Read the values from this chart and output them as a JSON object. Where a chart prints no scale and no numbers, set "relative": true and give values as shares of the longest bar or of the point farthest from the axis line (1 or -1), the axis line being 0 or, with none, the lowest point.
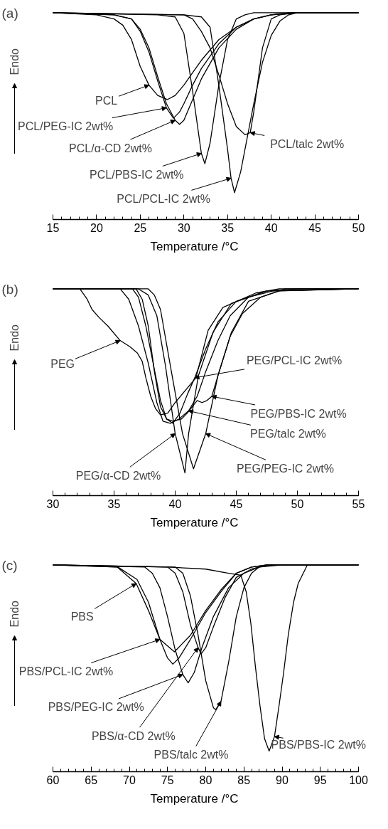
{
  "chart_data": [
    {
      "type": "line",
      "title": "(a)",
      "xlabel": "Temperature /°C",
      "ylabel": "Endo",
      "relative": true,
      "xlim": [
        15,
        50
      ],
      "xticks": [
        15,
        20,
        25,
        30,
        35,
        40,
        45,
        50
      ],
      "grid": false,
      "series": [
        {
          "color": "#000000",
          "x": [
            15,
            20,
            22,
            23,
            24,
            25,
            26,
            27,
            28.1,
            29,
            30,
            31,
            32,
            34,
            36,
            38,
            40,
            42,
            50
          ],
          "values": [
            1,
            0.99,
            0.97,
            0.94,
            0.87,
            0.74,
            0.65,
            0.6,
            0.58,
            0.6,
            0.65,
            0.71,
            0.77,
            0.87,
            0.93,
            0.97,
            0.99,
            1,
            1
          ]
        },
        {
          "color": "#000000",
          "x": [
            15,
            22,
            24,
            25,
            26,
            27,
            28,
            28.8,
            29.5,
            30,
            31,
            32,
            34,
            36,
            38,
            40,
            43,
            50
          ],
          "values": [
            1,
            0.99,
            0.97,
            0.91,
            0.81,
            0.67,
            0.54,
            0.49,
            0.52,
            0.56,
            0.65,
            0.73,
            0.85,
            0.93,
            0.97,
            0.99,
            1,
            1
          ]
        },
        {
          "color": "#000000",
          "x": [
            15,
            22,
            24,
            25,
            26,
            27,
            28,
            29,
            29.5,
            30,
            31,
            32,
            34,
            36,
            38,
            40,
            43,
            50
          ],
          "values": [
            1,
            0.99,
            0.97,
            0.92,
            0.83,
            0.69,
            0.56,
            0.48,
            0.46,
            0.48,
            0.58,
            0.68,
            0.83,
            0.92,
            0.97,
            0.99,
            1,
            1
          ]
        },
        {
          "color": "#000000",
          "x": [
            15,
            27,
            29,
            30,
            31,
            32,
            32.4,
            33,
            34,
            35,
            36,
            37,
            38,
            50
          ],
          "values": [
            1,
            0.99,
            0.98,
            0.9,
            0.62,
            0.32,
            0.27,
            0.37,
            0.65,
            0.87,
            0.97,
            0.99,
            1,
            1
          ]
        },
        {
          "color": "#000000",
          "x": [
            15,
            30,
            32,
            33,
            34,
            35,
            35.4,
            35.8,
            36.5,
            37,
            38,
            39,
            40,
            41,
            42,
            43,
            50
          ],
          "values": [
            1,
            0.99,
            0.98,
            0.93,
            0.65,
            0.34,
            0.2,
            0.13,
            0.23,
            0.34,
            0.56,
            0.76,
            0.89,
            0.96,
            0.99,
            1,
            1
          ]
        },
        {
          "color": "#000000",
          "x": [
            15,
            30,
            31,
            32,
            33,
            34,
            35,
            36,
            37,
            37.6,
            38,
            39,
            40,
            41,
            43,
            50
          ],
          "values": [
            1,
            0.99,
            0.97,
            0.91,
            0.83,
            0.7,
            0.56,
            0.45,
            0.41,
            0.42,
            0.52,
            0.83,
            0.97,
            0.99,
            1,
            1
          ]
        }
      ],
      "annotations": [
        {
          "text": "PCL",
          "x": 26,
          "y": 0.65
        },
        {
          "text": "PCL/PEG-IC 2wt%",
          "x": 28,
          "y": 0.54
        },
        {
          "text": "PCL/α-CD 2wt%",
          "x": 29,
          "y": 0.48
        },
        {
          "text": "PCL/PBS-IC 2wt%",
          "x": 32,
          "y": 0.32
        },
        {
          "text": "PCL/PCL-IC 2wt%",
          "x": 35.4,
          "y": 0.2
        },
        {
          "text": "PCL/talc 2wt%",
          "x": 37.6,
          "y": 0.42
        }
      ]
    },
    {
      "type": "line",
      "title": "(b)",
      "xlabel": "Temperature /°C",
      "ylabel": "Endo",
      "relative": true,
      "xlim": [
        30,
        55
      ],
      "xticks": [
        30,
        35,
        40,
        45,
        50,
        55
      ],
      "grid": false,
      "series": [
        {
          "color": "#000000",
          "x": [
            30,
            32.2,
            32.8,
            33.2,
            33.8,
            34.5,
            35.5,
            36.3,
            36.9,
            37.3,
            37.6,
            38.0,
            38.4,
            38.8,
            39.4,
            40.0,
            41.7,
            42.7,
            43.9,
            46.6,
            48.5,
            55
          ],
          "values": [
            1,
            1,
            0.95,
            0.9,
            0.86,
            0.82,
            0.75,
            0.72,
            0.69,
            0.65,
            0.57,
            0.48,
            0.42,
            0.39,
            0.4,
            0.45,
            0.57,
            0.8,
            0.91,
            0.98,
            1,
            1
          ]
        },
        {
          "color": "#000000",
          "x": [
            30,
            36.5,
            37.0,
            37.6,
            38.2,
            38.8,
            39.3,
            39.8,
            40.4,
            41.0,
            41.6,
            42.5,
            43.5,
            45,
            47.5,
            55
          ],
          "values": [
            1,
            1,
            0.96,
            0.82,
            0.64,
            0.46,
            0.37,
            0.35,
            0.4,
            0.49,
            0.57,
            0.71,
            0.84,
            0.94,
            0.99,
            1
          ]
        },
        {
          "color": "#000000",
          "x": [
            30,
            36.8,
            37.3,
            37.8,
            38.3,
            38.8,
            39.3,
            39.8,
            40.5,
            41.0,
            41.8,
            42.2,
            42.6,
            43.0,
            43.6,
            44.5,
            45.5,
            47,
            49,
            55
          ],
          "values": [
            1,
            1,
            0.95,
            0.82,
            0.6,
            0.43,
            0.37,
            0.36,
            0.37,
            0.4,
            0.46,
            0.45,
            0.46,
            0.48,
            0.6,
            0.77,
            0.88,
            0.96,
            1,
            1
          ]
        },
        {
          "color": "#000000",
          "x": [
            30,
            35.5,
            36.2,
            37.0,
            37.8,
            38.5,
            39.0,
            39.6,
            40.3,
            41.1,
            41.8,
            42.5,
            43.5,
            44.5,
            46,
            48,
            55
          ],
          "values": [
            1,
            1,
            0.95,
            0.82,
            0.64,
            0.45,
            0.36,
            0.35,
            0.37,
            0.41,
            0.48,
            0.6,
            0.75,
            0.87,
            0.96,
            0.99,
            1
          ]
        },
        {
          "color": "#000000",
          "x": [
            30,
            37.8,
            38.3,
            38.8,
            39.6,
            40.6,
            41.5,
            42.5,
            43.5,
            44.6,
            46.0,
            48.5,
            55
          ],
          "values": [
            1,
            1,
            0.97,
            0.9,
            0.63,
            0.3,
            0.13,
            0.3,
            0.58,
            0.79,
            0.94,
            0.99,
            1
          ]
        },
        {
          "color": "#000000",
          "x": [
            30,
            37,
            37.8,
            38.5,
            39.2,
            40.0,
            40.8,
            41.1,
            41.9,
            43.1,
            44.6,
            47.5,
            50,
            55
          ],
          "values": [
            1,
            1,
            0.97,
            0.87,
            0.63,
            0.3,
            0.11,
            0.3,
            0.58,
            0.79,
            0.93,
            0.99,
            1,
            1
          ]
        }
      ],
      "annotations": [
        {
          "text": "PEG",
          "x": 35.5,
          "y": 0.75
        },
        {
          "text": "PEG/PCL-IC 2wt%",
          "x": 41.6,
          "y": 0.57
        },
        {
          "text": "PEG/PBS-IC 2wt%",
          "x": 43.0,
          "y": 0.48
        },
        {
          "text": "PEG/talc 2wt%",
          "x": 41.1,
          "y": 0.41
        },
        {
          "text": "PEG/PEG-IC 2wt%",
          "x": 42.5,
          "y": 0.3
        },
        {
          "text": "PEG/α-CD 2wt%",
          "x": 40.0,
          "y": 0.3
        }
      ]
    },
    {
      "type": "line",
      "title": "(c)",
      "xlabel": "Temperature /°C",
      "ylabel": "Endo",
      "relative": true,
      "xlim": [
        60,
        100
      ],
      "xticks": [
        60,
        65,
        70,
        75,
        80,
        85,
        90,
        95,
        100
      ],
      "grid": false,
      "series": [
        {
          "color": "#000000",
          "x": [
            60,
            68.4,
            70.9,
            72.5,
            74.0,
            75.9,
            78,
            80,
            82,
            84,
            86,
            88,
            100
          ],
          "values": [
            1,
            0.99,
            0.91,
            0.78,
            0.64,
            0.58,
            0.66,
            0.78,
            0.88,
            0.96,
            0.99,
            1,
            1
          ]
        },
        {
          "color": "#000000",
          "x": [
            60,
            68.5,
            71,
            72.5,
            74,
            75,
            75.7,
            76.5,
            78,
            80,
            82,
            84,
            86,
            88,
            100
          ],
          "values": [
            1,
            0.99,
            0.93,
            0.82,
            0.64,
            0.55,
            0.52,
            0.55,
            0.64,
            0.77,
            0.87,
            0.96,
            0.99,
            1,
            1
          ]
        },
        {
          "color": "#000000",
          "x": [
            60,
            72,
            73,
            74,
            75,
            76,
            77,
            77.7,
            78.5,
            79.5,
            81,
            83,
            85,
            87,
            90,
            100
          ],
          "values": [
            1,
            0.99,
            0.96,
            0.89,
            0.75,
            0.59,
            0.47,
            0.43,
            0.48,
            0.6,
            0.75,
            0.89,
            0.96,
            0.99,
            1,
            1
          ]
        },
        {
          "color": "#000000",
          "x": [
            60,
            75,
            76,
            77,
            78,
            79,
            79.4,
            80,
            81,
            82.5,
            84,
            86,
            88,
            100
          ],
          "values": [
            1,
            0.99,
            0.96,
            0.87,
            0.71,
            0.6,
            0.57,
            0.6,
            0.7,
            0.84,
            0.94,
            0.98,
            1,
            1
          ]
        },
        {
          "color": "#000000",
          "x": [
            60,
            76,
            77,
            78,
            79,
            80,
            81,
            81.3,
            82,
            83,
            84,
            85,
            86,
            87,
            89,
            100
          ],
          "values": [
            1,
            0.99,
            0.96,
            0.85,
            0.66,
            0.44,
            0.31,
            0.3,
            0.34,
            0.53,
            0.75,
            0.89,
            0.96,
            0.99,
            1,
            1
          ]
        },
        {
          "color": "#000000",
          "x": [
            60,
            75,
            80,
            83,
            84.6,
            85.3,
            85.9,
            86.5,
            87.1,
            87.7,
            88.3,
            89,
            89.6,
            90.2,
            90.8,
            91.5,
            92.1,
            93.3,
            100
          ],
          "values": [
            1,
            0.99,
            0.98,
            0.96,
            0.95,
            0.87,
            0.72,
            0.51,
            0.32,
            0.16,
            0.1,
            0.17,
            0.32,
            0.48,
            0.66,
            0.82,
            0.91,
            1,
            1
          ]
        }
      ],
      "annotations": [
        {
          "text": "PBS",
          "x": 70.9,
          "y": 0.91
        },
        {
          "text": "PBS/PCL-IC 2wt%",
          "x": 74,
          "y": 0.64
        },
        {
          "text": "PBS/PEG-IC 2wt%",
          "x": 77,
          "y": 0.47
        },
        {
          "text": "PBS/α-CD 2wt%",
          "x": 79,
          "y": 0.6
        },
        {
          "text": "PBS/talc 2wt%",
          "x": 82,
          "y": 0.34
        },
        {
          "text": "PBS/PBS-IC 2wt%",
          "x": 89,
          "y": 0.17
        }
      ]
    }
  ]
}
